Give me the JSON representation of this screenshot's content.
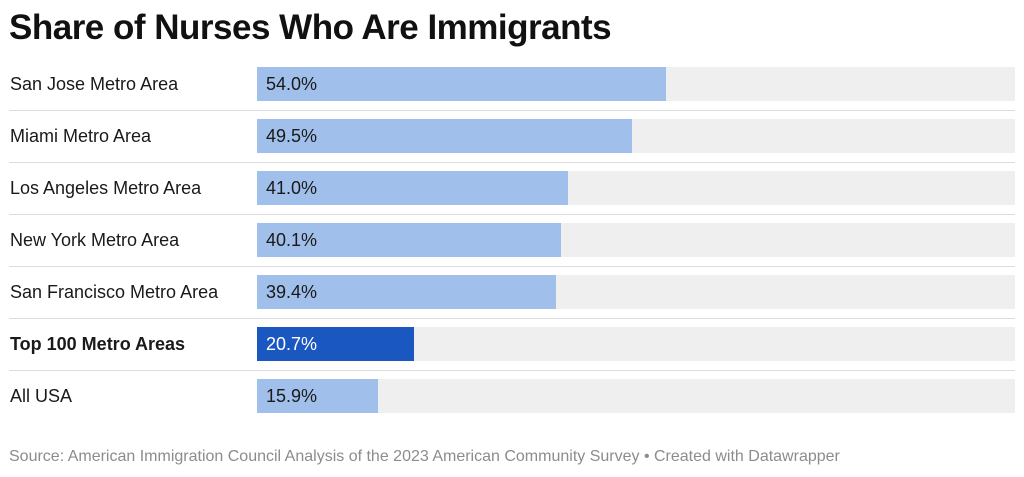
{
  "chart_data": {
    "type": "bar",
    "orientation": "horizontal",
    "title": "Share of Nurses Who Are Immigrants",
    "categories": [
      "San Jose Metro Area",
      "Miami Metro Area",
      "Los Angeles Metro Area",
      "New York Metro Area",
      "San Francisco Metro Area",
      "Top 100 Metro Areas",
      "All USA"
    ],
    "values": [
      54.0,
      49.5,
      41.0,
      40.1,
      39.4,
      20.7,
      15.9
    ],
    "value_labels": [
      "54.0%",
      "49.5%",
      "41.0%",
      "40.1%",
      "39.4%",
      "20.7%",
      "15.9%"
    ],
    "highlighted": [
      false,
      false,
      false,
      false,
      false,
      true,
      false
    ],
    "xlim": [
      0,
      100
    ],
    "unit": "%",
    "colors": {
      "bar": "#a0bfea",
      "highlight": "#1a57c1",
      "track": "#efefef"
    }
  },
  "footer": {
    "source": "Source: American Immigration Council Analysis of the 2023 American Community Survey • Created with Datawrapper"
  }
}
